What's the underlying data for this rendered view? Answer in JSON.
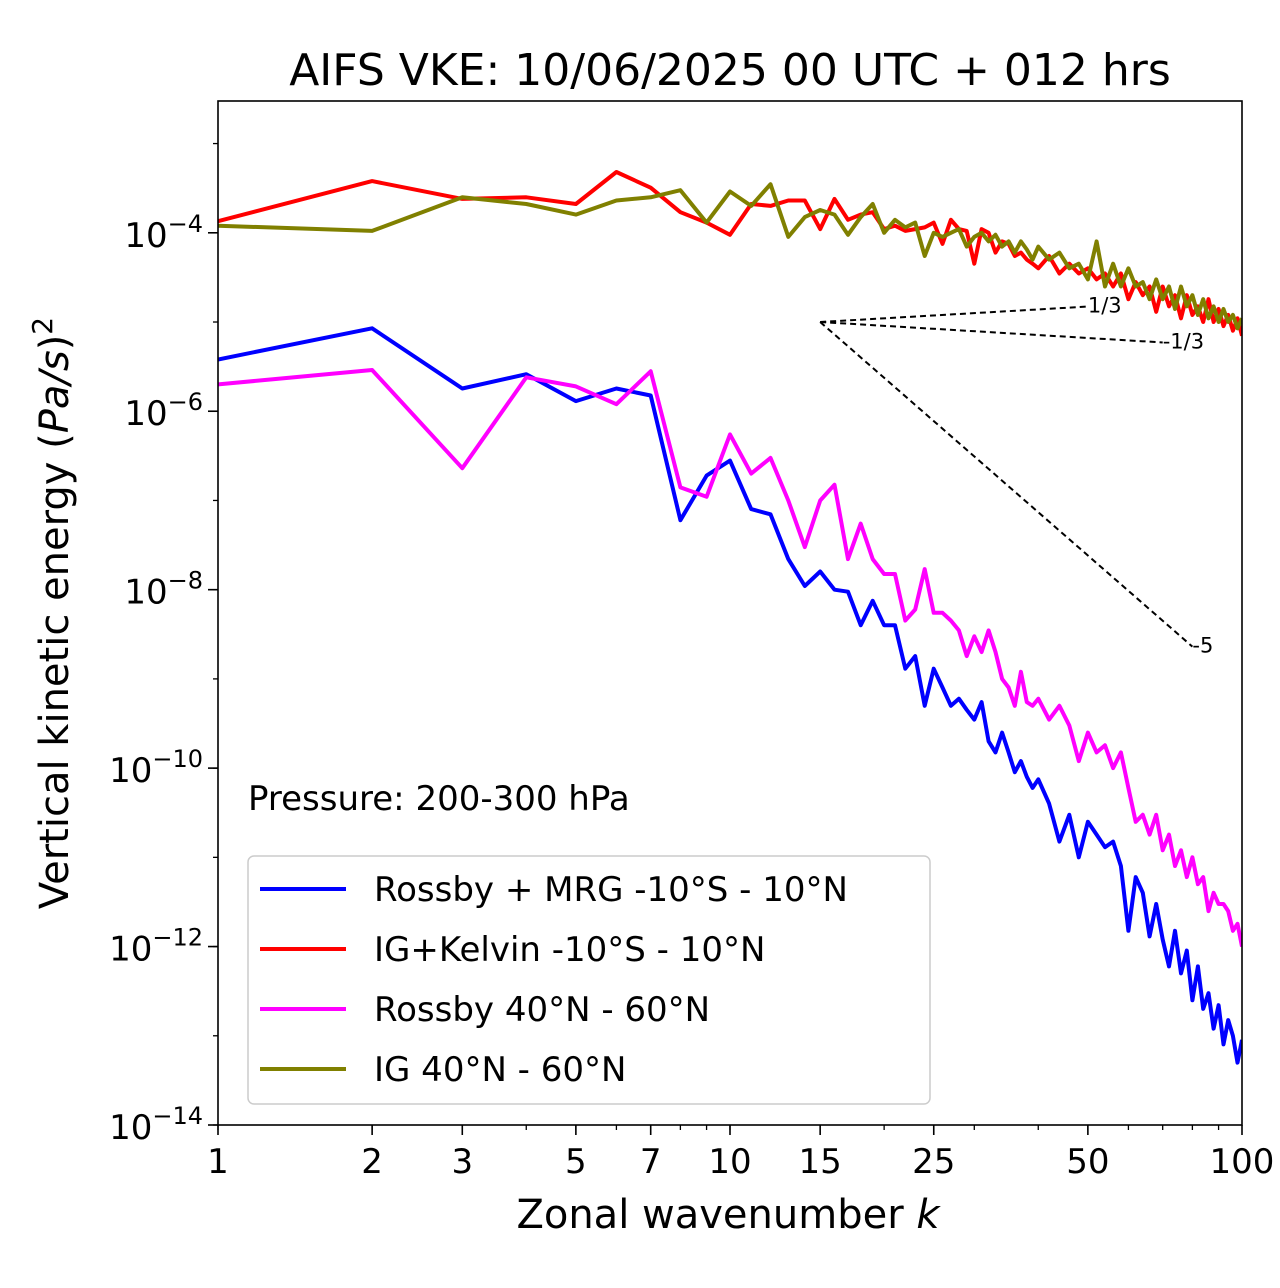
{
  "chart_data": {
    "type": "line",
    "title": "AIFS VKE: 10/06/2025 00 UTC + 012 hrs",
    "xlabel": "Zonal wavenumber k",
    "ylabel": "Vertical kinetic energy (Pa/s)",
    "ylabel_power": "2",
    "xscale": "log",
    "yscale": "log",
    "xlim": [
      1,
      100
    ],
    "ylim": [
      1e-14,
      0.003
    ],
    "grid": false,
    "legend_position": "lower-left",
    "annotation": "Pressure: 200-300 hPa",
    "x_ticks": [
      {
        "value": 1,
        "label": "1"
      },
      {
        "value": 2,
        "label": "2"
      },
      {
        "value": 3,
        "label": "3"
      },
      {
        "value": 5,
        "label": "5"
      },
      {
        "value": 7,
        "label": "7"
      },
      {
        "value": 10,
        "label": "10"
      },
      {
        "value": 15,
        "label": "15"
      },
      {
        "value": 25,
        "label": "25"
      },
      {
        "value": 50,
        "label": "50"
      },
      {
        "value": 100,
        "label": "100"
      }
    ],
    "y_ticks": [
      {
        "value": 0.0001,
        "base": "10",
        "exp": "−4"
      },
      {
        "value": 1e-06,
        "base": "10",
        "exp": "−6"
      },
      {
        "value": 1e-08,
        "base": "10",
        "exp": "−8"
      },
      {
        "value": 1e-10,
        "base": "10",
        "exp": "−10"
      },
      {
        "value": 1e-12,
        "base": "10",
        "exp": "−12"
      },
      {
        "value": 1e-14,
        "base": "10",
        "exp": "−14"
      }
    ],
    "reference_lines": [
      {
        "label": "1/3",
        "x": [
          15,
          50
        ],
        "y": [
          1e-05,
          1.49e-05
        ]
      },
      {
        "label": "-1/3",
        "x": [
          15,
          70
        ],
        "y": [
          1e-05,
          5.9e-06
        ]
      },
      {
        "label": "-5",
        "x": [
          15,
          80
        ],
        "y": [
          1e-05,
          2.3e-09
        ]
      }
    ],
    "series": [
      {
        "name": "Rossby + MRG -10°S - 10°N",
        "color": "#0000ff",
        "x": [
          1,
          2,
          3,
          4,
          5,
          6,
          7,
          8,
          9,
          10,
          11,
          12,
          13,
          14,
          15,
          16,
          17,
          18,
          19,
          20,
          21,
          22,
          23,
          24,
          25,
          26,
          27,
          28,
          29,
          30,
          31,
          32,
          33,
          34,
          35,
          36,
          37,
          38,
          39,
          40,
          42,
          44,
          46,
          48,
          50,
          52,
          54,
          56,
          58,
          60,
          62,
          64,
          66,
          68,
          70,
          72,
          74,
          76,
          78,
          80,
          82,
          84,
          86,
          88,
          90,
          92,
          94,
          96,
          98,
          100
        ],
        "y": [
          3.8e-06,
          8.5e-06,
          1.8e-06,
          2.6e-06,
          1.3e-06,
          1.8e-06,
          1.5e-06,
          6e-08,
          1.9e-07,
          2.8e-07,
          8e-08,
          7e-08,
          2.2e-08,
          1.1e-08,
          1.6e-08,
          1e-08,
          9.5e-09,
          4e-09,
          7.5e-09,
          4e-09,
          4e-09,
          1.3e-09,
          1.8e-09,
          5e-10,
          1.3e-09,
          8e-10,
          5e-10,
          6e-10,
          4.5e-10,
          3.5e-10,
          5.5e-10,
          2e-10,
          1.5e-10,
          2.5e-10,
          1.5e-10,
          9e-11,
          1.2e-10,
          8e-11,
          6e-11,
          7.5e-11,
          4e-11,
          1.5e-11,
          3e-11,
          1e-11,
          2.5e-11,
          1.8e-11,
          1.3e-11,
          1.5e-11,
          8e-12,
          1.5e-12,
          6e-12,
          4e-12,
          1.3e-12,
          3e-12,
          1.2e-12,
          6e-13,
          1.5e-12,
          5e-13,
          9e-13,
          2.5e-13,
          6e-13,
          2e-13,
          3e-13,
          1.2e-13,
          2.2e-13,
          8e-14,
          1.5e-13,
          1e-13,
          5e-14,
          9e-14
        ]
      },
      {
        "name": "IG+Kelvin -10°S - 10°N",
        "color": "#ff0000",
        "x": [
          1,
          2,
          3,
          4,
          5,
          6,
          7,
          8,
          9,
          10,
          11,
          12,
          13,
          14,
          15,
          16,
          17,
          18,
          19,
          20,
          21,
          22,
          23,
          24,
          25,
          26,
          27,
          28,
          29,
          30,
          31,
          32,
          33,
          34,
          35,
          36,
          37,
          38,
          39,
          40,
          42,
          44,
          46,
          48,
          50,
          52,
          54,
          56,
          58,
          60,
          62,
          64,
          66,
          68,
          70,
          72,
          74,
          76,
          78,
          80,
          82,
          84,
          86,
          88,
          90,
          92,
          94,
          96,
          98,
          100
        ],
        "y": [
          0.000135,
          0.00038,
          0.00024,
          0.00025,
          0.00021,
          0.00048,
          0.00032,
          0.00017,
          0.00013,
          9.5e-05,
          0.00021,
          0.0002,
          0.00023,
          0.00023,
          0.00011,
          0.00024,
          0.00014,
          0.00016,
          0.00017,
          0.00011,
          0.00012,
          0.000105,
          0.00011,
          0.000115,
          0.00013,
          7.5e-05,
          0.00014,
          0.00011,
          0.000105,
          4.5e-05,
          0.00011,
          0.0001,
          6e-05,
          8e-05,
          7.5e-05,
          5.5e-05,
          6e-05,
          5e-05,
          4.5e-05,
          4e-05,
          5.5e-05,
          3.5e-05,
          4.5e-05,
          3.5e-05,
          4e-05,
          3e-05,
          3.5e-05,
          2.5e-05,
          3.5e-05,
          1.8e-05,
          2.8e-05,
          2e-05,
          2.5e-05,
          1.3e-05,
          2.5e-05,
          1.5e-05,
          2e-05,
          1.1e-05,
          2e-05,
          1.2e-05,
          1.5e-05,
          1e-05,
          1.8e-05,
          1e-05,
          1.4e-05,
          9e-06,
          1.2e-05,
          8e-06,
          1.1e-05,
          7e-06
        ]
      },
      {
        "name": "Rossby 40°N - 60°N",
        "color": "#ff00ff",
        "x": [
          1,
          2,
          3,
          4,
          5,
          6,
          7,
          8,
          9,
          10,
          11,
          12,
          13,
          14,
          15,
          16,
          17,
          18,
          19,
          20,
          21,
          22,
          23,
          24,
          25,
          26,
          27,
          28,
          29,
          30,
          31,
          32,
          33,
          34,
          35,
          36,
          37,
          38,
          39,
          40,
          42,
          44,
          46,
          48,
          50,
          52,
          54,
          56,
          58,
          60,
          62,
          64,
          66,
          68,
          70,
          72,
          74,
          76,
          78,
          80,
          82,
          84,
          86,
          88,
          90,
          92,
          94,
          96,
          98,
          100
        ],
        "y": [
          2e-06,
          2.9e-06,
          2.3e-07,
          2.4e-06,
          1.9e-06,
          1.2e-06,
          2.8e-06,
          1.4e-07,
          1.1e-07,
          5.5e-07,
          2e-07,
          3e-07,
          1e-07,
          3e-08,
          1e-07,
          1.5e-07,
          2.2e-08,
          5.5e-08,
          2.2e-08,
          1.5e-08,
          1.5e-08,
          4.5e-09,
          6e-09,
          1.7e-08,
          5.5e-09,
          5.5e-09,
          4.5e-09,
          3.5e-09,
          1.8e-09,
          3e-09,
          2e-09,
          3.5e-09,
          2e-09,
          1e-09,
          8e-10,
          5e-10,
          1.2e-09,
          5.5e-10,
          5e-10,
          6e-10,
          3.5e-10,
          5e-10,
          3e-10,
          1.2e-10,
          2.5e-10,
          1.5e-10,
          1.8e-10,
          1e-10,
          1.5e-10,
          6e-11,
          2.5e-11,
          3e-11,
          1.8e-11,
          3e-11,
          1.2e-11,
          1.8e-11,
          8e-12,
          1.2e-11,
          6e-12,
          1e-11,
          5e-12,
          6e-12,
          2.5e-12,
          4e-12,
          3e-12,
          3e-12,
          2.5e-12,
          1.5e-12,
          1.8e-12,
          1e-12
        ]
      },
      {
        "name": "IG 40°N - 60°N",
        "color": "#808000",
        "x": [
          1,
          2,
          3,
          4,
          5,
          6,
          7,
          8,
          9,
          10,
          11,
          12,
          13,
          14,
          15,
          16,
          17,
          18,
          19,
          20,
          21,
          22,
          23,
          24,
          25,
          26,
          27,
          28,
          29,
          30,
          31,
          32,
          33,
          34,
          35,
          36,
          37,
          38,
          39,
          40,
          42,
          44,
          46,
          48,
          50,
          52,
          54,
          56,
          58,
          60,
          62,
          64,
          66,
          68,
          70,
          72,
          74,
          76,
          78,
          80,
          82,
          84,
          86,
          88,
          90,
          92,
          94,
          96,
          98,
          100
        ],
        "y": [
          0.00012,
          0.000105,
          0.00025,
          0.00021,
          0.00016,
          0.00023,
          0.00025,
          0.0003,
          0.00013,
          0.00029,
          0.0002,
          0.00035,
          9e-05,
          0.00015,
          0.00018,
          0.00016,
          9.5e-05,
          0.00015,
          0.00021,
          0.0001,
          0.00014,
          0.000115,
          0.00013,
          5.5e-05,
          0.0001,
          9e-05,
          0.0001,
          0.00011,
          7e-05,
          9e-05,
          0.0001,
          8e-05,
          9.5e-05,
          7e-05,
          8e-05,
          6e-05,
          8e-05,
          6.5e-05,
          5e-05,
          7e-05,
          5e-05,
          6e-05,
          4e-05,
          4.5e-05,
          3e-05,
          8e-05,
          2.5e-05,
          4.5e-05,
          2.5e-05,
          4e-05,
          2.5e-05,
          2.8e-05,
          1.8e-05,
          3e-05,
          1.8e-05,
          2.5e-05,
          1.4e-05,
          2.5e-05,
          1.5e-05,
          2e-05,
          1.2e-05,
          1.8e-05,
          1.1e-05,
          1.5e-05,
          1e-05,
          1.4e-05,
          1e-05,
          1.2e-05,
          8.5e-06,
          1.1e-05
        ]
      }
    ]
  }
}
